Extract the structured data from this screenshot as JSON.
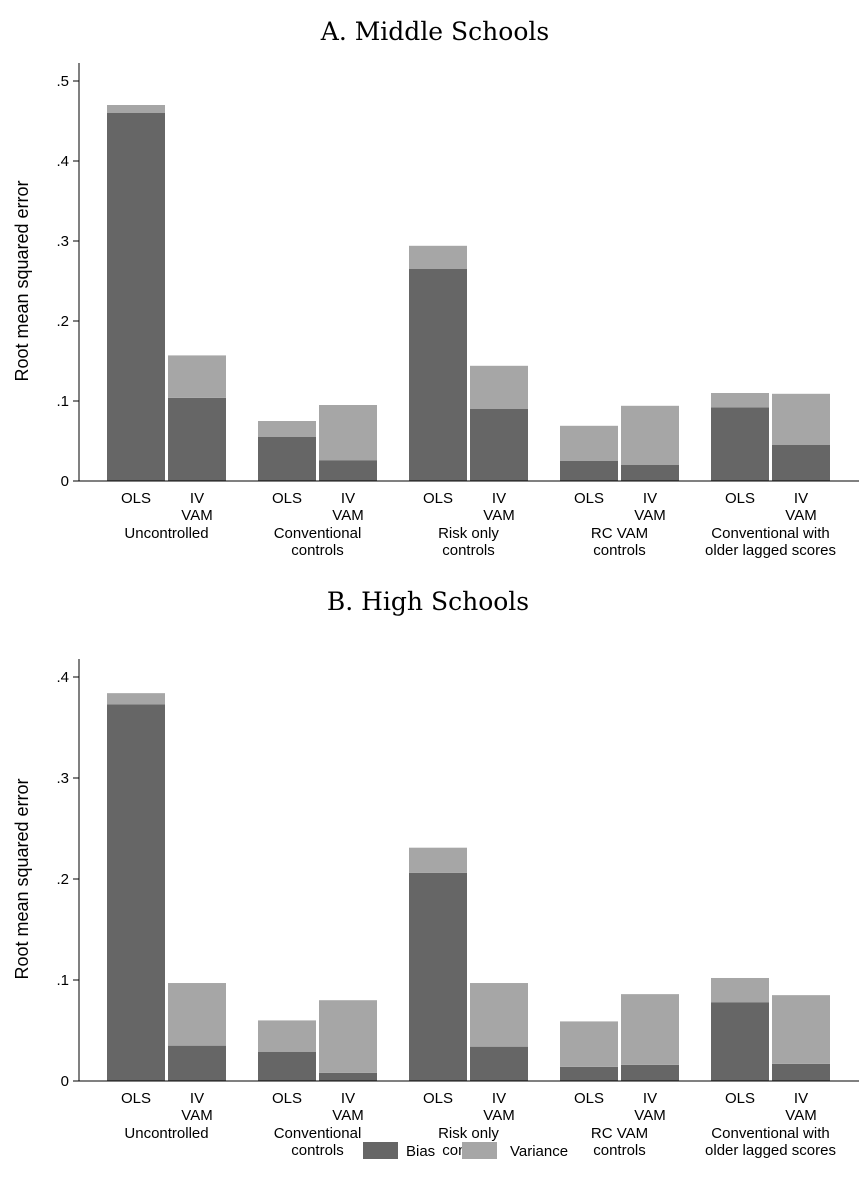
{
  "colors": {
    "bias": "#666666",
    "variance": "#a6a6a6"
  },
  "legend": {
    "bias_label": "Bias",
    "variance_label": "Variance"
  },
  "chart_data": [
    {
      "type": "bar",
      "stacked": true,
      "title": "A. Middle Schools",
      "ylabel": "Root mean squared error",
      "ylim": [
        0,
        0.5
      ],
      "yticks": [
        {
          "value": 0,
          "label": "0"
        },
        {
          "value": 0.1,
          "label": ".1"
        },
        {
          "value": 0.2,
          "label": ".2"
        },
        {
          "value": 0.3,
          "label": ".3"
        },
        {
          "value": 0.4,
          "label": ".4"
        },
        {
          "value": 0.5,
          "label": ".5"
        }
      ],
      "groups": [
        "Uncontrolled",
        "Conventional controls",
        "Risk only controls",
        "RC VAM controls",
        "Conventional with older lagged scores"
      ],
      "group_label_lines": [
        [
          "Uncontrolled"
        ],
        [
          "Conventional",
          "controls"
        ],
        [
          "Risk only",
          "controls"
        ],
        [
          "RC VAM",
          "controls"
        ],
        [
          "Conventional with",
          "older lagged scores"
        ]
      ],
      "bar_labels": [
        [
          "OLS"
        ],
        [
          "IV",
          "VAM"
        ]
      ],
      "series": [
        {
          "name": "Bias",
          "values": [
            [
              0.46,
              0.104
            ],
            [
              0.055,
              0.026
            ],
            [
              0.265,
              0.09
            ],
            [
              0.025,
              0.02
            ],
            [
              0.092,
              0.045
            ]
          ]
        },
        {
          "name": "Variance",
          "values": [
            [
              0.01,
              0.053
            ],
            [
              0.02,
              0.069
            ],
            [
              0.029,
              0.054
            ],
            [
              0.044,
              0.074
            ],
            [
              0.018,
              0.064
            ]
          ]
        }
      ],
      "totals": [
        [
          0.47,
          0.157
        ],
        [
          0.075,
          0.095
        ],
        [
          0.294,
          0.144
        ],
        [
          0.069,
          0.094
        ],
        [
          0.11,
          0.109
        ]
      ]
    },
    {
      "type": "bar",
      "stacked": true,
      "title": "B. High Schools",
      "ylabel": "Root mean squared error",
      "ylim": [
        0,
        0.4
      ],
      "yticks": [
        {
          "value": 0,
          "label": "0"
        },
        {
          "value": 0.1,
          "label": ".1"
        },
        {
          "value": 0.2,
          "label": ".2"
        },
        {
          "value": 0.3,
          "label": ".3"
        },
        {
          "value": 0.4,
          "label": ".4"
        }
      ],
      "groups": [
        "Uncontrolled",
        "Conventional controls",
        "Risk only controls",
        "RC VAM controls",
        "Conventional with older lagged scores"
      ],
      "group_label_lines": [
        [
          "Uncontrolled"
        ],
        [
          "Conventional",
          "controls"
        ],
        [
          "Risk only",
          "controls"
        ],
        [
          "RC VAM",
          "controls"
        ],
        [
          "Conventional with",
          "older lagged scores"
        ]
      ],
      "bar_labels": [
        [
          "OLS"
        ],
        [
          "IV",
          "VAM"
        ]
      ],
      "series": [
        {
          "name": "Bias",
          "values": [
            [
              0.373,
              0.035
            ],
            [
              0.029,
              0.008
            ],
            [
              0.206,
              0.034
            ],
            [
              0.014,
              0.016
            ],
            [
              0.078,
              0.017
            ]
          ]
        },
        {
          "name": "Variance",
          "values": [
            [
              0.011,
              0.062
            ],
            [
              0.031,
              0.072
            ],
            [
              0.025,
              0.063
            ],
            [
              0.045,
              0.07
            ],
            [
              0.024,
              0.068
            ]
          ]
        }
      ],
      "totals": [
        [
          0.384,
          0.097
        ],
        [
          0.06,
          0.08
        ],
        [
          0.231,
          0.097
        ],
        [
          0.059,
          0.086
        ],
        [
          0.102,
          0.085
        ]
      ]
    }
  ]
}
